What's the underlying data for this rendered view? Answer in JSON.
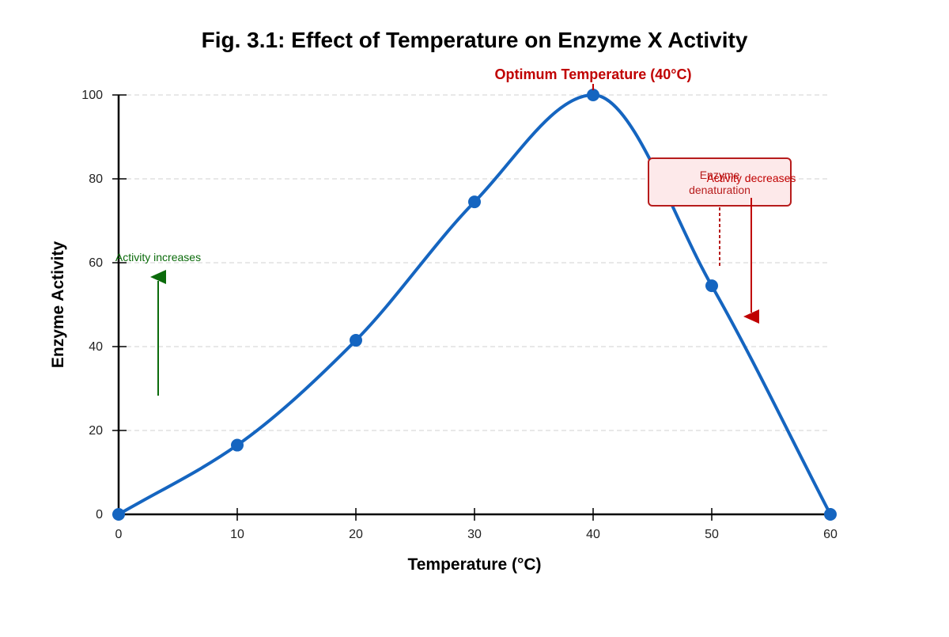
{
  "chart_data": {
    "type": "line",
    "title": "Fig. 3.1: Effect of Temperature on Enzyme X Activity",
    "xlabel": "Temperature (°C)",
    "ylabel": "Enzyme Activity",
    "xlim": [
      0,
      60
    ],
    "ylim": [
      0,
      100
    ],
    "x_ticks": [
      0,
      10,
      20,
      30,
      40,
      50,
      60
    ],
    "y_ticks": [
      0,
      20,
      40,
      60,
      80,
      100
    ],
    "grid": "horizontal-dashed",
    "series": [
      {
        "x": [
          0,
          10,
          20,
          30,
          40,
          50,
          60
        ],
        "values": [
          0,
          16.5,
          41.5,
          74.5,
          100,
          54.5,
          0
        ],
        "color": "#1565c0"
      }
    ],
    "annotations": {
      "optimum": {
        "text": "Optimum Temperature (40°C)",
        "x": 40,
        "y": 100,
        "color": "#c00000"
      },
      "increase": {
        "text": "Activity increases",
        "color": "#0b6b0b"
      },
      "decrease": {
        "text": "Activity decreases",
        "color": "#c00000"
      },
      "denaturation": {
        "line1": "Enzyme",
        "line2": "denaturation",
        "color": "#b71c1c",
        "fill": "#fde9ea"
      }
    }
  }
}
